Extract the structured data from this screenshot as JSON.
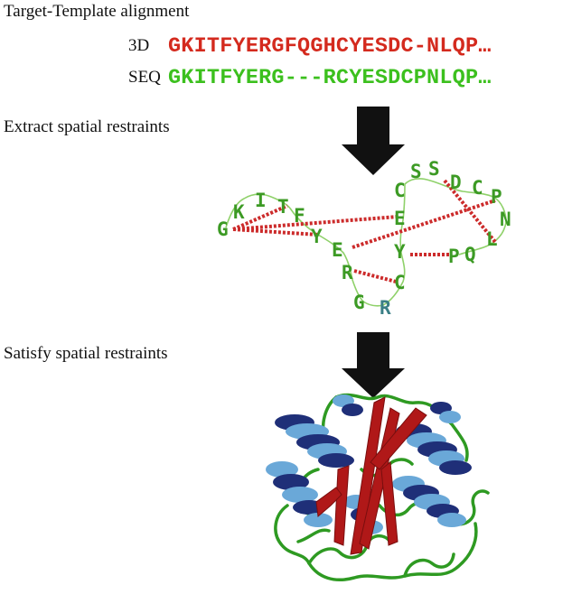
{
  "headings": {
    "alignment": "Target-Template alignment",
    "extract": "Extract spatial restraints",
    "satisfy": "Satisfy spatial restraints"
  },
  "alignment": {
    "template_label": "3D",
    "template_seq": "GKITFYERGFQGHCYESDC-NLQP…",
    "target_label": "SEQ",
    "target_seq": "GKITFYERG---RCYESDCPNLQP…"
  },
  "colors": {
    "template": "#d42a1e",
    "target": "#3cc01e",
    "residue": "#3c9a24",
    "residue_alt": "#3a7f86",
    "restraint": "#cc2b2b",
    "helix_light": "#6aa8d8",
    "helix_dark": "#1f2f78",
    "strand": "#b01818",
    "loop": "#2e9a22"
  },
  "residues": [
    "G",
    "K",
    "I",
    "T",
    "F",
    "Y",
    "E",
    "R",
    "G",
    "R",
    "C",
    "Y",
    "E",
    "C",
    "S",
    "S",
    "D",
    "C",
    "P",
    "N",
    "L",
    "Q",
    "P"
  ]
}
